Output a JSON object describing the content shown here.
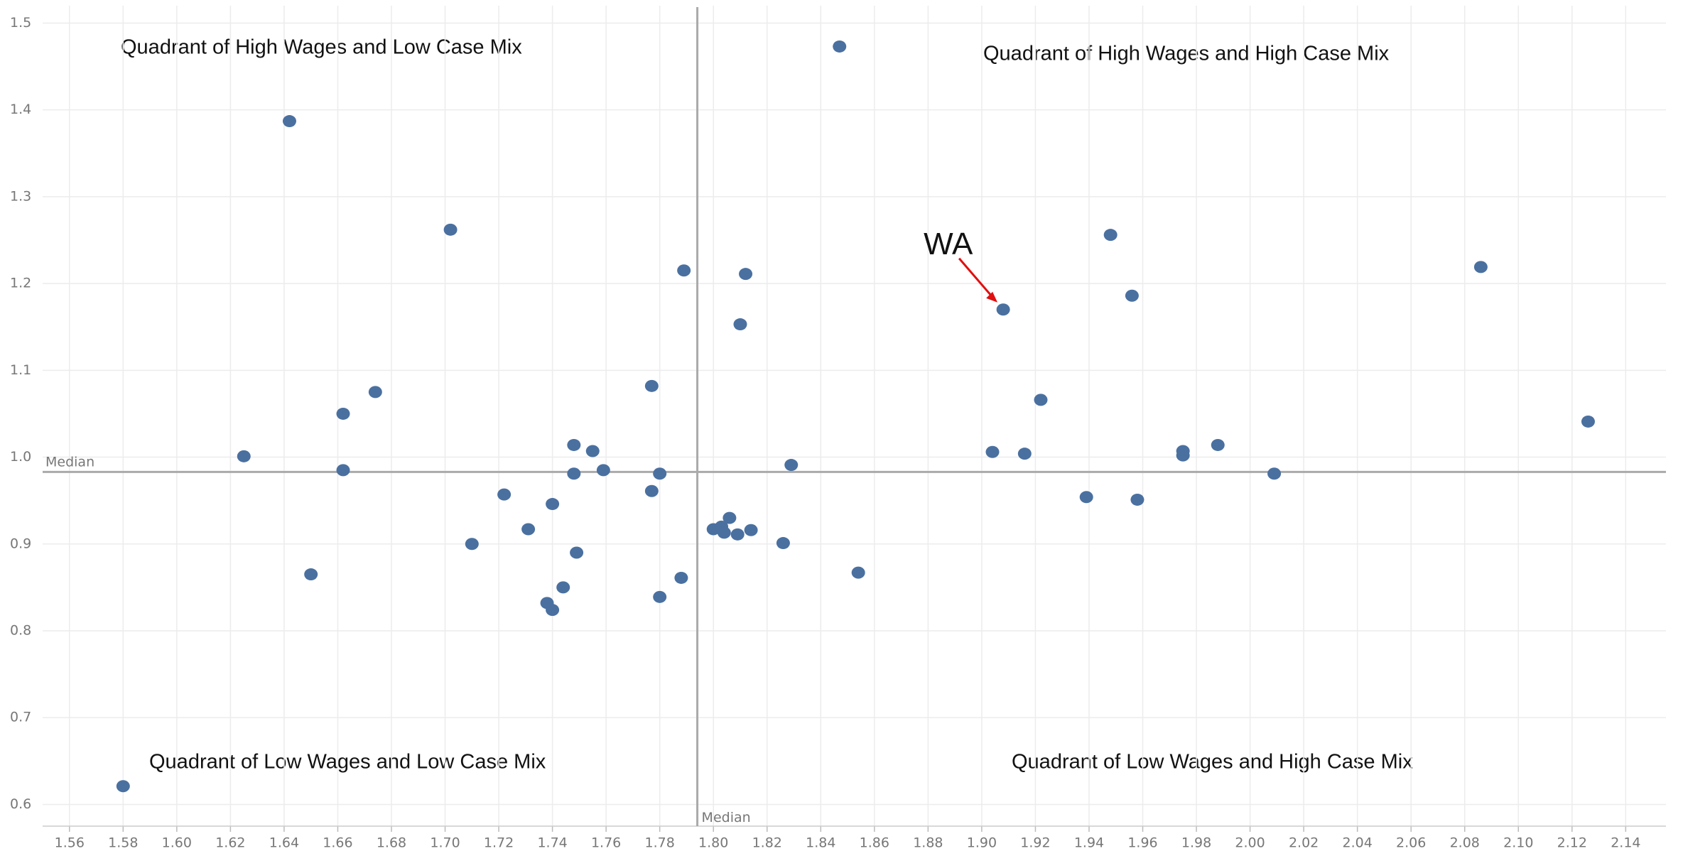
{
  "chart_data": {
    "type": "scatter",
    "x": [
      1.847,
      1.642,
      1.702,
      1.789,
      1.812,
      1.81,
      1.908,
      1.948,
      1.956,
      2.086,
      1.674,
      1.662,
      1.625,
      1.662,
      1.777,
      1.748,
      1.755,
      1.748,
      1.759,
      1.78,
      1.829,
      1.922,
      1.904,
      1.916,
      1.975,
      1.975,
      1.988,
      2.009,
      2.126,
      1.722,
      1.74,
      1.777,
      1.71,
      1.731,
      1.749,
      1.65,
      1.744,
      1.738,
      1.74,
      1.78,
      1.788,
      1.8,
      1.803,
      1.806,
      1.804,
      1.809,
      1.814,
      1.826,
      1.854,
      1.939,
      1.958,
      1.58
    ],
    "series": [
      {
        "color": "#4a70a0",
        "values": [
          1.473,
          1.387,
          1.262,
          1.215,
          1.211,
          1.153,
          1.17,
          1.256,
          1.186,
          1.219,
          1.075,
          1.05,
          1.001,
          0.985,
          1.082,
          1.014,
          1.007,
          0.981,
          0.985,
          0.981,
          0.991,
          1.066,
          1.006,
          1.004,
          1.007,
          1.002,
          1.014,
          0.981,
          1.041,
          0.957,
          0.946,
          0.961,
          0.9,
          0.917,
          0.89,
          0.865,
          0.85,
          0.832,
          0.824,
          0.839,
          0.861,
          0.917,
          0.92,
          0.93,
          0.913,
          0.911,
          0.916,
          0.901,
          0.867,
          0.954,
          0.951,
          0.621
        ]
      }
    ],
    "xlim": [
      1.55,
      2.155
    ],
    "ylim": [
      0.575,
      1.52
    ],
    "xticks": [
      1.56,
      1.58,
      {
        "value": 1.6,
        "label": "1.60"
      },
      1.62,
      1.64,
      1.66,
      1.68,
      {
        "value": 1.7,
        "label": "1.70"
      },
      1.72,
      1.74,
      1.76,
      1.78,
      {
        "value": 1.8,
        "label": "1.80"
      },
      1.82,
      1.84,
      1.86,
      1.88,
      {
        "value": 1.9,
        "label": "1.90"
      },
      1.92,
      1.94,
      1.96,
      1.98,
      {
        "value": 2.0,
        "label": "2.00"
      },
      2.02,
      2.04,
      2.06,
      2.08,
      {
        "value": 2.1,
        "label": "2.10"
      },
      2.12,
      2.14
    ],
    "yticks": [
      0.6,
      0.7,
      0.8,
      0.9,
      {
        "value": 1.0,
        "label": "1.0"
      },
      1.1,
      1.2,
      1.3,
      1.4,
      1.5
    ],
    "grid": true,
    "median_x": {
      "value": 1.794,
      "label": "Median"
    },
    "median_y": {
      "value": 0.983,
      "label": "Median"
    },
    "annotations": [
      "Quadrant of High Wages and Low Case Mix",
      "Quadrant of High Wages and High Case Mix",
      "Quadrant of Low Wages and Low Case Mix",
      "Quadrant of Low Wages and High Case Mix"
    ],
    "callout": {
      "label": "WA",
      "point": 6
    }
  }
}
